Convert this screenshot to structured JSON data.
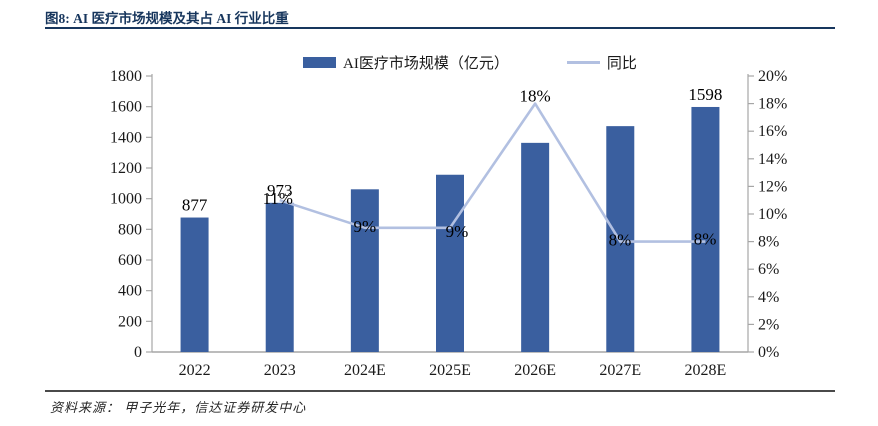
{
  "page": {
    "title": "图8: AI 医疗市场规模及其占 AI 行业比重",
    "source_label": "资料来源：",
    "source": "甲子光年，信达证券研发中心"
  },
  "chart_data": {
    "type": "combo-bar-line",
    "title": "图8: AI 医疗市场规模及其占 AI 行业比重",
    "categories": [
      "2022",
      "2023",
      "2024E",
      "2025E",
      "2026E",
      "2027E",
      "2028E"
    ],
    "series": [
      {
        "name": "AI医疗市场规模（亿元）",
        "type": "bar",
        "axis": "left",
        "color": "#3a5f9f",
        "values": [
          877,
          973,
          1061,
          1156,
          1364,
          1473,
          1598
        ],
        "point_labels": {
          "0": "877",
          "1": "973",
          "6": "1598"
        }
      },
      {
        "name": "同比",
        "type": "line",
        "axis": "right",
        "color": "#b2c0e1",
        "values": [
          null,
          11,
          9,
          9,
          18,
          8,
          8
        ],
        "point_labels": {
          "1": "11%",
          "2": "9%",
          "3": "9%",
          "4": "18%",
          "5": "8%",
          "6": "8%"
        }
      }
    ],
    "left_axis": {
      "min": 0,
      "max": 1800,
      "step": 200,
      "ticks": [
        "0",
        "200",
        "400",
        "600",
        "800",
        "1000",
        "1200",
        "1400",
        "1600",
        "1800"
      ]
    },
    "right_axis": {
      "min": 0,
      "max": 20,
      "step": 2,
      "ticks": [
        "0%",
        "2%",
        "4%",
        "6%",
        "8%",
        "10%",
        "12%",
        "14%",
        "16%",
        "18%",
        "20%"
      ]
    },
    "grid": false,
    "legend_position": "top"
  }
}
